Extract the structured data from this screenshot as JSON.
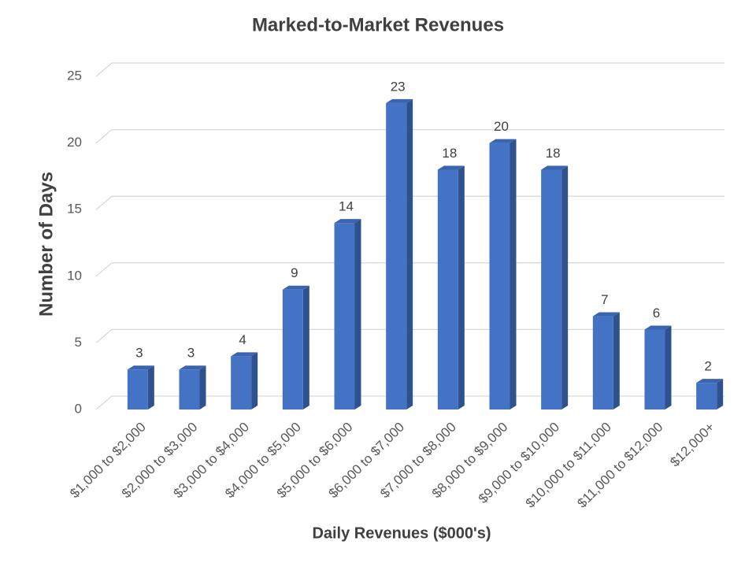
{
  "chart_data": {
    "type": "bar",
    "title": "Marked-to-Market Revenues",
    "x_label": "Daily Revenues ($000's)",
    "y_label": "Number of Days",
    "categories": [
      "$1,000 to $2,000",
      "$2,000 to $3,000",
      "$3,000 to $4,000",
      "$4,000 to $5,000",
      "$5,000 to $6,000",
      "$6,000 to $7,000",
      "$7,000 to $8,000",
      "$8,000 to $9,000",
      "$9,000 to $10,000",
      "$10,000 to $11,000",
      "$11,000 to $12,000",
      "$12,000+"
    ],
    "values": [
      3,
      3,
      4,
      9,
      14,
      23,
      18,
      20,
      18,
      7,
      6,
      2
    ],
    "color": "#4472c4",
    "ylim": [
      0,
      25
    ],
    "yticks": [
      0,
      5,
      10,
      15,
      20,
      25
    ],
    "grid": true
  }
}
